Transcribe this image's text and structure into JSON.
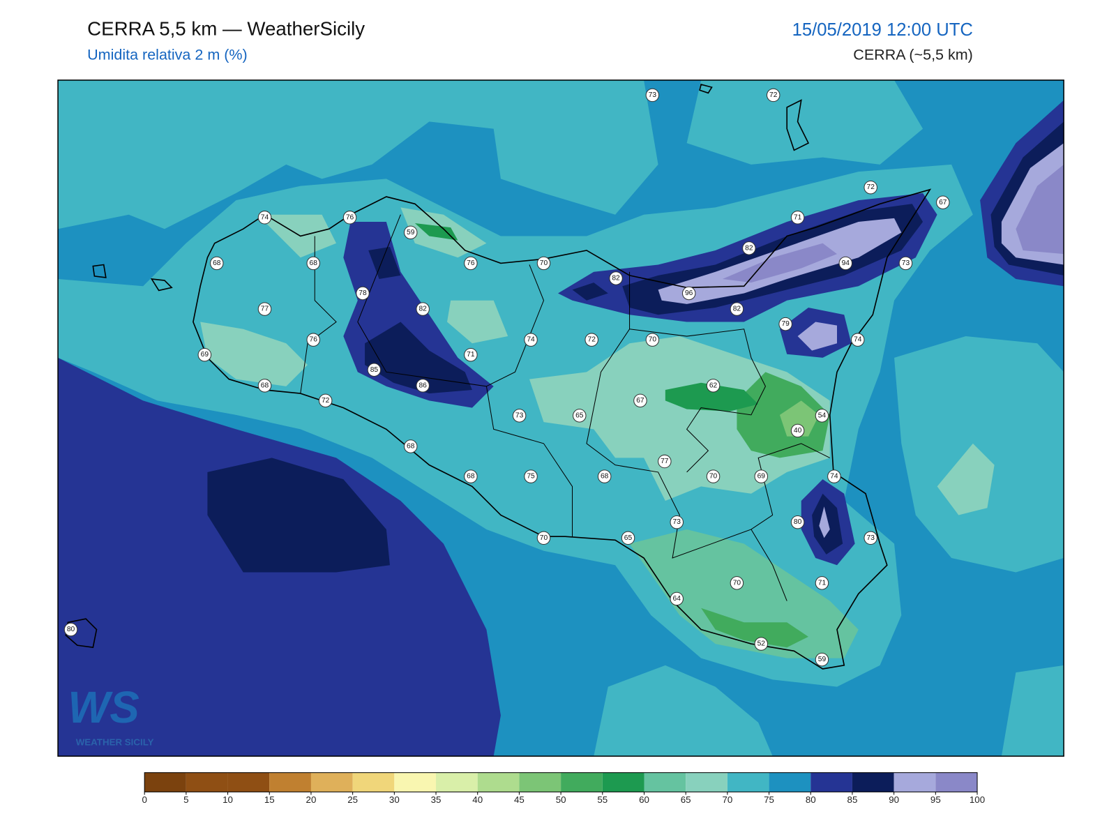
{
  "header": {
    "title": "CERRA 5,5 km — WeatherSicily",
    "subtitle": "Umidita relativa 2 m (%)",
    "datetime": "15/05/2019 12:00 UTC",
    "model": "CERRA (~5,5 km)"
  },
  "logo": {
    "mark": "WS",
    "text": "Weather Sicily"
  },
  "stations": [
    73,
    72,
    72,
    67,
    71,
    74,
    76,
    59,
    82,
    68,
    68,
    76,
    70,
    94,
    73,
    82,
    78,
    96,
    77,
    82,
    82,
    79,
    74,
    72,
    70,
    74,
    76,
    69,
    71,
    85,
    86,
    68,
    62,
    72,
    67,
    73,
    65,
    54,
    40,
    68,
    77,
    68,
    75,
    68,
    70,
    69,
    74,
    80,
    73,
    70,
    65,
    73,
    70,
    71,
    64,
    80,
    52,
    59
  ],
  "colorbar": {
    "ticks": [
      0,
      5,
      10,
      15,
      20,
      25,
      30,
      35,
      40,
      45,
      50,
      55,
      60,
      65,
      70,
      75,
      80,
      85,
      90,
      95,
      100
    ],
    "colors": [
      "#7b420e",
      "#8f4f14",
      "#8f4f14",
      "#c08030",
      "#dfb05a",
      "#f0d67a",
      "#f9f6b0",
      "#d9efa9",
      "#aedc8e",
      "#7cc576",
      "#41ab5d",
      "#1d9a50",
      "#65c3a0",
      "#88d1bd",
      "#41b6c4",
      "#1d91c0",
      "#253494",
      "#0c1d5a",
      "#a6a9dc",
      "#8a88c8"
    ]
  }
}
